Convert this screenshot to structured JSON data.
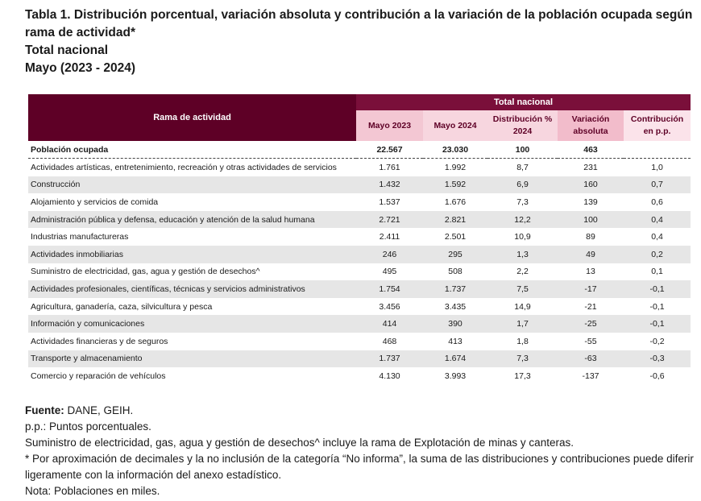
{
  "title": {
    "line1": "Tabla 1. Distribución porcentual, variación absoluta y contribución a la variación de la población ocupada según rama de actividad*",
    "line2": "Total nacional",
    "line3": "Mayo (2023 - 2024)"
  },
  "table": {
    "header": {
      "rama": "Rama de actividad",
      "group": "Total nacional",
      "col1": "Mayo 2023",
      "col2": "Mayo 2024",
      "col3_a": "Distribución %",
      "col3_b": "2024",
      "col4_a": "Variación",
      "col4_b": "absoluta",
      "col5_a": "Contribución",
      "col5_b": "en p.p."
    },
    "total_row": {
      "name": "Población ocupada",
      "v2023": "22.567",
      "v2024": "23.030",
      "dist": "100",
      "var": "463",
      "contrib": ""
    },
    "rows": [
      {
        "name": "Actividades artísticas, entretenimiento, recreación y otras actividades de servicios",
        "v2023": "1.761",
        "v2024": "1.992",
        "dist": "8,7",
        "var": "231",
        "contrib": "1,0"
      },
      {
        "name": "Construcción",
        "v2023": "1.432",
        "v2024": "1.592",
        "dist": "6,9",
        "var": "160",
        "contrib": "0,7"
      },
      {
        "name": "Alojamiento y servicios de comida",
        "v2023": "1.537",
        "v2024": "1.676",
        "dist": "7,3",
        "var": "139",
        "contrib": "0,6"
      },
      {
        "name": "Administración pública y defensa, educación y atención de la salud humana",
        "v2023": "2.721",
        "v2024": "2.821",
        "dist": "12,2",
        "var": "100",
        "contrib": "0,4"
      },
      {
        "name": "Industrias manufactureras",
        "v2023": "2.411",
        "v2024": "2.501",
        "dist": "10,9",
        "var": "89",
        "contrib": "0,4"
      },
      {
        "name": "Actividades inmobiliarias",
        "v2023": "246",
        "v2024": "295",
        "dist": "1,3",
        "var": "49",
        "contrib": "0,2"
      },
      {
        "name": "Suministro de electricidad, gas, agua y gestión de desechos^",
        "v2023": "495",
        "v2024": "508",
        "dist": "2,2",
        "var": "13",
        "contrib": "0,1"
      },
      {
        "name": "Actividades profesionales, científicas, técnicas y servicios administrativos",
        "v2023": "1.754",
        "v2024": "1.737",
        "dist": "7,5",
        "var": "-17",
        "contrib": "-0,1"
      },
      {
        "name": "Agricultura, ganadería, caza, silvicultura y pesca",
        "v2023": "3.456",
        "v2024": "3.435",
        "dist": "14,9",
        "var": "-21",
        "contrib": "-0,1"
      },
      {
        "name": "Información y comunicaciones",
        "v2023": "414",
        "v2024": "390",
        "dist": "1,7",
        "var": "-25",
        "contrib": "-0,1"
      },
      {
        "name": "Actividades financieras y de seguros",
        "v2023": "468",
        "v2024": "413",
        "dist": "1,8",
        "var": "-55",
        "contrib": "-0,2"
      },
      {
        "name": "Transporte y almacenamiento",
        "v2023": "1.737",
        "v2024": "1.674",
        "dist": "7,3",
        "var": "-63",
        "contrib": "-0,3"
      },
      {
        "name": "Comercio y reparación de vehículos",
        "v2023": "4.130",
        "v2024": "3.993",
        "dist": "17,3",
        "var": "-137",
        "contrib": "-0,6"
      }
    ]
  },
  "notes": {
    "source_label": "Fuente:",
    "source_text": " DANE, GEIH.",
    "pp": "p.p.: Puntos porcentuales.",
    "suministro": "Suministro de electricidad, gas, agua y gestión de desechos^ incluye la rama de Explotación de minas y canteras.",
    "aprox": "* Por aproximación de decimales y la no inclusión de la categoría “No informa”, la suma de las distribuciones y contribuciones puede diferir ligeramente con la información del anexo estadístico.",
    "nota": "Nota: Poblaciones en miles."
  },
  "colors": {
    "header_dark": "#5e0026",
    "header_group": "#7a0f3a",
    "shade_row": "#e6e6e6"
  }
}
